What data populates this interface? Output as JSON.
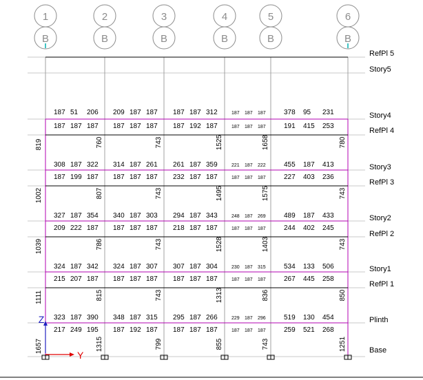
{
  "columns": [
    {
      "grid": "1",
      "sub": "B"
    },
    {
      "grid": "2",
      "sub": "B"
    },
    {
      "grid": "3",
      "sub": "B"
    },
    {
      "grid": "4",
      "sub": "B"
    },
    {
      "grid": "5",
      "sub": "B"
    },
    {
      "grid": "6",
      "sub": "B"
    }
  ],
  "levels": [
    "RefPl 5",
    "Story5",
    "Story4",
    "RefPl 4",
    "Story3",
    "RefPl 3",
    "Story2",
    "RefPl 2",
    "Story1",
    "RefPl 1",
    "Plinth",
    "Base"
  ],
  "beam_rows": [
    [
      [
        "187",
        "51",
        "206"
      ],
      [
        "209",
        "187",
        "187"
      ],
      [
        "187",
        "187",
        "312"
      ],
      [
        "187",
        "187",
        "187"
      ],
      [
        "378",
        "95",
        "231"
      ]
    ],
    [
      [
        "187",
        "187",
        "187"
      ],
      [
        "187",
        "187",
        "187"
      ],
      [
        "187",
        "192",
        "187"
      ],
      [
        "187",
        "187",
        "187"
      ],
      [
        "191",
        "415",
        "253"
      ]
    ],
    [
      [
        "308",
        "187",
        "322"
      ],
      [
        "314",
        "187",
        "261"
      ],
      [
        "261",
        "187",
        "359"
      ],
      [
        "221",
        "187",
        "222"
      ],
      [
        "455",
        "187",
        "413"
      ]
    ],
    [
      [
        "187",
        "199",
        "187"
      ],
      [
        "187",
        "187",
        "187"
      ],
      [
        "232",
        "187",
        "187"
      ],
      [
        "187",
        "187",
        "187"
      ],
      [
        "227",
        "403",
        "236"
      ]
    ],
    [
      [
        "327",
        "187",
        "354"
      ],
      [
        "340",
        "187",
        "303"
      ],
      [
        "294",
        "187",
        "343"
      ],
      [
        "248",
        "187",
        "269"
      ],
      [
        "489",
        "187",
        "433"
      ]
    ],
    [
      [
        "209",
        "222",
        "187"
      ],
      [
        "187",
        "187",
        "187"
      ],
      [
        "218",
        "187",
        "187"
      ],
      [
        "187",
        "187",
        "187"
      ],
      [
        "244",
        "402",
        "245"
      ]
    ],
    [
      [
        "324",
        "187",
        "342"
      ],
      [
        "324",
        "187",
        "307"
      ],
      [
        "307",
        "187",
        "304"
      ],
      [
        "230",
        "187",
        "315"
      ],
      [
        "534",
        "133",
        "506"
      ]
    ],
    [
      [
        "215",
        "207",
        "187"
      ],
      [
        "187",
        "187",
        "187"
      ],
      [
        "187",
        "187",
        "187"
      ],
      [
        "187",
        "187",
        "187"
      ],
      [
        "267",
        "445",
        "258"
      ]
    ],
    [
      [
        "323",
        "187",
        "390"
      ],
      [
        "348",
        "187",
        "315"
      ],
      [
        "295",
        "187",
        "266"
      ],
      [
        "229",
        "187",
        "296"
      ],
      [
        "519",
        "130",
        "454"
      ]
    ],
    [
      [
        "217",
        "249",
        "195"
      ],
      [
        "187",
        "192",
        "187"
      ],
      [
        "187",
        "187",
        "187"
      ],
      [
        "187",
        "187",
        "187"
      ],
      [
        "259",
        "521",
        "268"
      ]
    ]
  ],
  "column_values": [
    [
      "819",
      "760",
      "743",
      "1525",
      "1658",
      "780"
    ],
    [
      "1002",
      "807",
      "743",
      "1495",
      "1575",
      "743"
    ],
    [
      "1039",
      "786",
      "743",
      "1528",
      "1403",
      "743"
    ],
    [
      "1111",
      "815",
      "743",
      "1313",
      "836",
      "850"
    ],
    [
      "1657",
      "1315",
      "799",
      "855",
      "743",
      "1251"
    ]
  ],
  "axes": {
    "z": "Z",
    "y": "Y"
  },
  "colors": {
    "frame_magenta": "#b000b0",
    "beam": "#000000",
    "level_line": "#c8c8c8",
    "grid_bubble": "#8c8c8c",
    "z_axis": "#2020c0",
    "y_axis": "#e00000",
    "cyan": "#00b0b0"
  }
}
